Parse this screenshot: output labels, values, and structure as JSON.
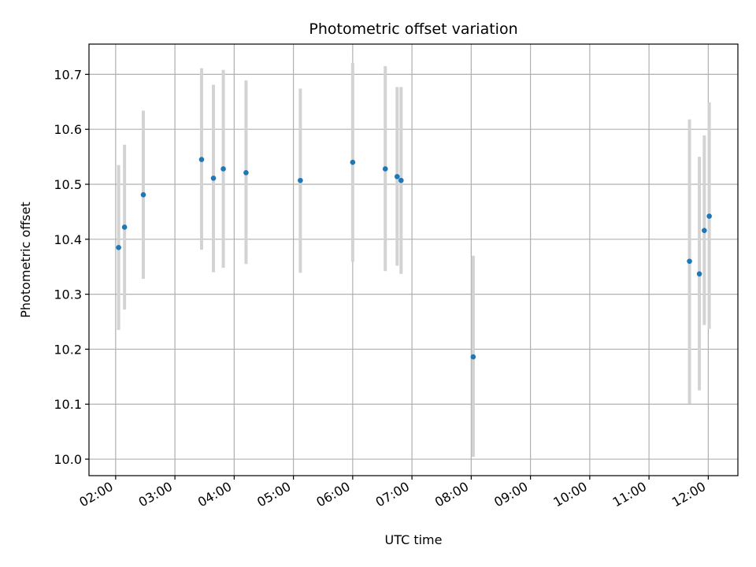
{
  "chart_data": {
    "type": "scatter",
    "title": "Photometric offset variation",
    "xlabel": "UTC time",
    "ylabel": "Photometric offset",
    "xlim": [
      "01:33",
      "12:30"
    ],
    "ylim": [
      9.97,
      10.755
    ],
    "grid": true,
    "x_ticks": [
      "02:00",
      "03:00",
      "04:00",
      "05:00",
      "06:00",
      "07:00",
      "08:00",
      "09:00",
      "10:00",
      "11:00",
      "12:00"
    ],
    "y_ticks": [
      10.0,
      10.1,
      10.2,
      10.3,
      10.4,
      10.5,
      10.6,
      10.7
    ],
    "y_tick_labels": [
      "10.0",
      "10.1",
      "10.2",
      "10.3",
      "10.4",
      "10.5",
      "10.6",
      "10.7"
    ],
    "point_color": "#1f77b4",
    "errorbar_color": "#d3d3d3",
    "points": [
      {
        "x": "02:03",
        "y": 10.385,
        "low": 10.235,
        "high": 10.535
      },
      {
        "x": "02:09",
        "y": 10.422,
        "low": 10.272,
        "high": 10.572
      },
      {
        "x": "02:28",
        "y": 10.481,
        "low": 10.328,
        "high": 10.634
      },
      {
        "x": "03:27",
        "y": 10.545,
        "low": 10.381,
        "high": 10.711
      },
      {
        "x": "03:39",
        "y": 10.511,
        "low": 10.34,
        "high": 10.681
      },
      {
        "x": "03:49",
        "y": 10.528,
        "low": 10.348,
        "high": 10.708
      },
      {
        "x": "04:12",
        "y": 10.521,
        "low": 10.355,
        "high": 10.689
      },
      {
        "x": "05:07",
        "y": 10.507,
        "low": 10.339,
        "high": 10.674
      },
      {
        "x": "06:00",
        "y": 10.54,
        "low": 10.359,
        "high": 10.721
      },
      {
        "x": "06:33",
        "y": 10.528,
        "low": 10.342,
        "high": 10.715
      },
      {
        "x": "06:45",
        "y": 10.514,
        "low": 10.352,
        "high": 10.677
      },
      {
        "x": "06:49",
        "y": 10.507,
        "low": 10.337,
        "high": 10.677
      },
      {
        "x": "08:02",
        "y": 10.186,
        "low": 10.004,
        "high": 10.37
      },
      {
        "x": "11:41",
        "y": 10.36,
        "low": 10.101,
        "high": 10.618
      },
      {
        "x": "11:51",
        "y": 10.337,
        "low": 10.125,
        "high": 10.55
      },
      {
        "x": "11:56",
        "y": 10.416,
        "low": 10.244,
        "high": 10.589
      },
      {
        "x": "12:01",
        "y": 10.442,
        "low": 10.237,
        "high": 10.649
      }
    ]
  }
}
